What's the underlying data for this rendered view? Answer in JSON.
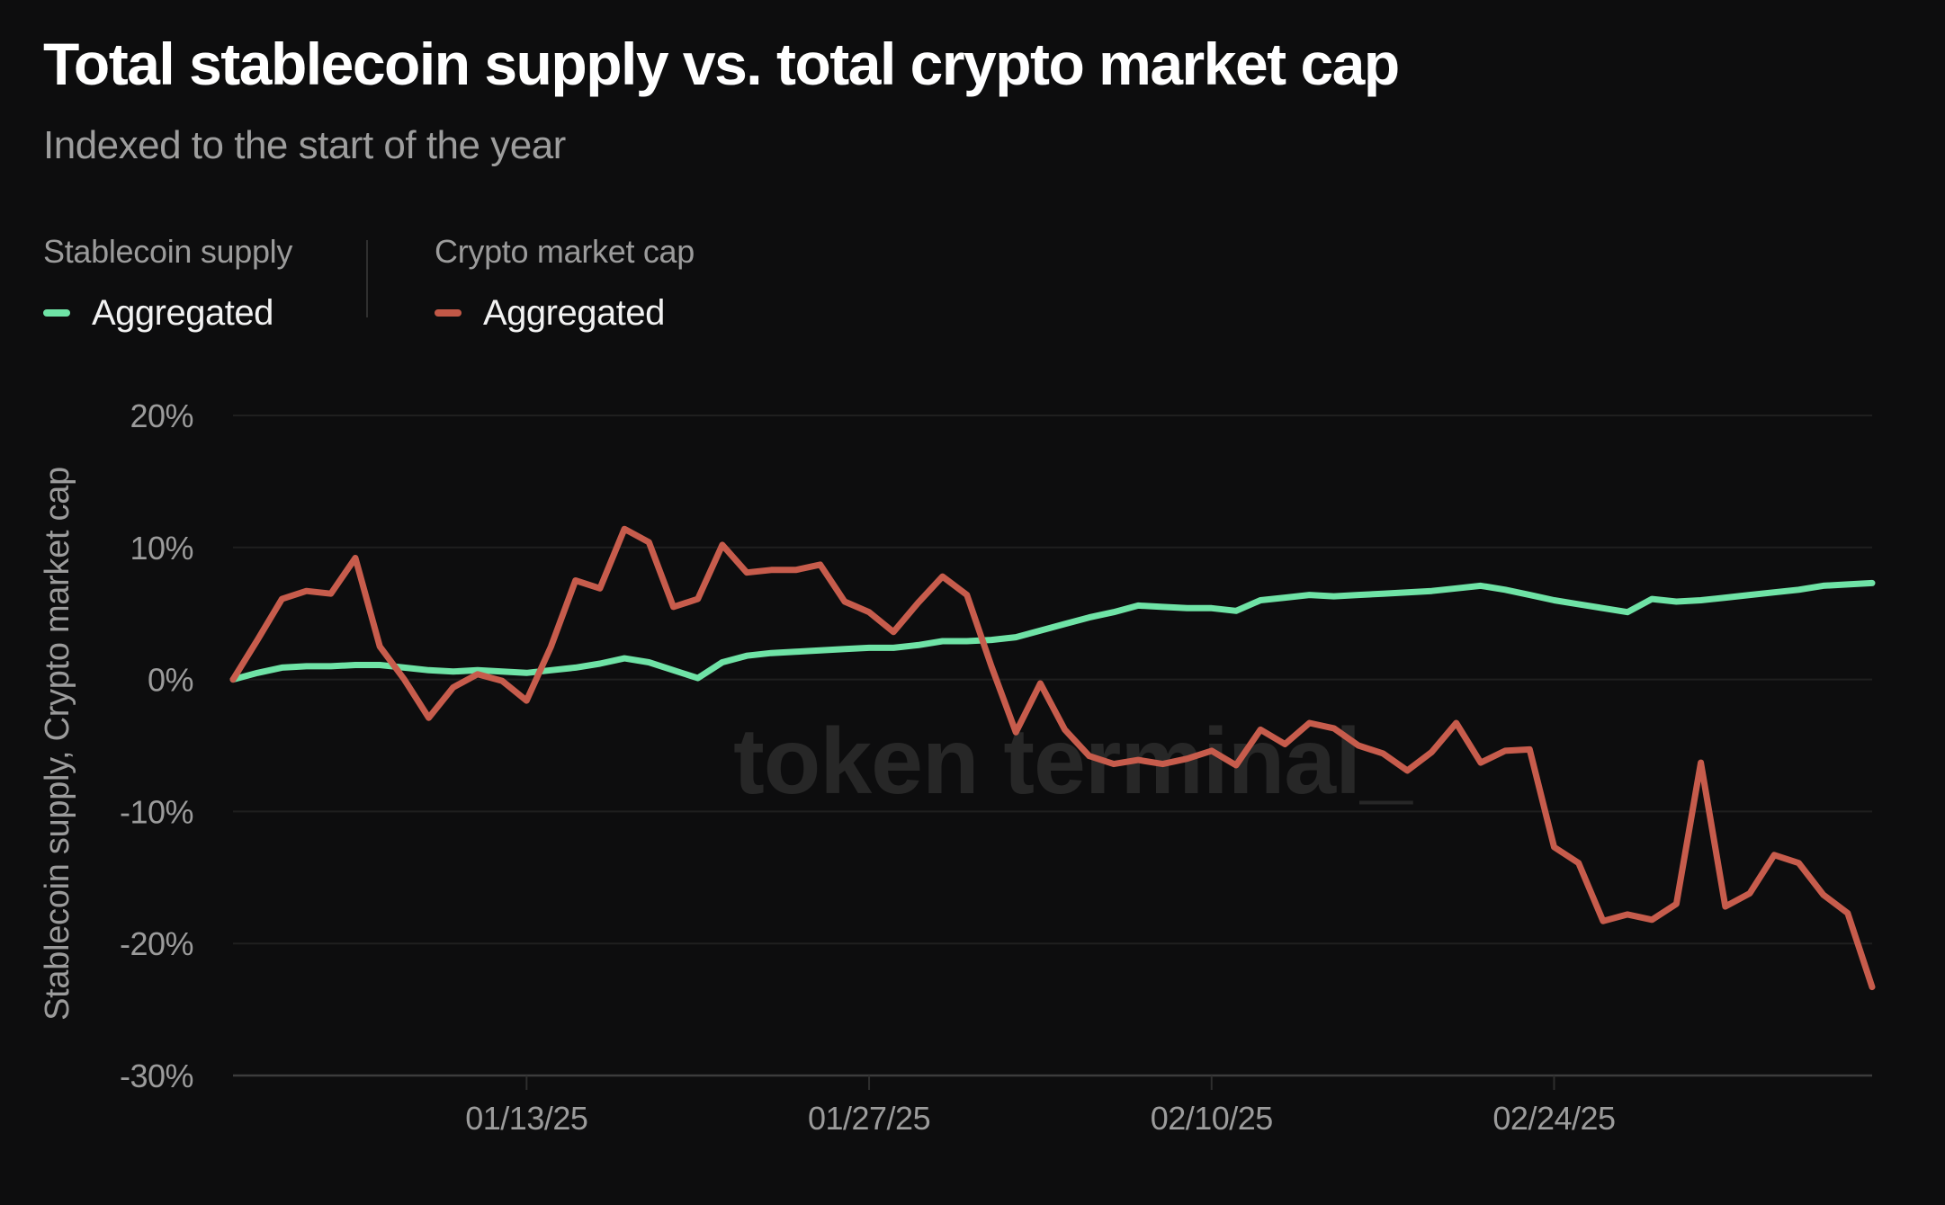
{
  "header": {
    "title": "Total stablecoin supply vs. total crypto market cap",
    "subtitle": "Indexed to the start of the year"
  },
  "legend": {
    "groups": [
      {
        "header": "Stablecoin supply",
        "series_label": "Aggregated",
        "color": "#6FE3A6"
      },
      {
        "header": "Crypto market cap",
        "series_label": "Aggregated",
        "color": "#C25847"
      }
    ]
  },
  "watermark": {
    "text": "token terminal_"
  },
  "y_axis": {
    "title": "Stablecoin supply, Crypto market cap"
  },
  "colors": {
    "background": "#0d0d0e",
    "gridline": "#1f1f1f",
    "axis_line": "#3c3c3c",
    "tick_mark": "#2e2e2e",
    "text_muted": "#9b9b9b",
    "text_primary": "#ffffff",
    "watermark": "#272727",
    "stablecoin_line": "#6FE3A6",
    "crypto_line": "#C75C4C"
  },
  "chart_data": {
    "type": "line",
    "title": "Total stablecoin supply vs. total crypto market cap",
    "subtitle": "Indexed to the start of the year",
    "ylabel": "Stablecoin supply, Crypto market cap",
    "ylim": [
      -30,
      20
    ],
    "grid": "horizontal",
    "legend_position": "top-left",
    "y_ticks": [
      {
        "value": 20,
        "label": "20%"
      },
      {
        "value": 10,
        "label": "10%"
      },
      {
        "value": 0,
        "label": "0%"
      },
      {
        "value": -10,
        "label": "-10%"
      },
      {
        "value": -20,
        "label": "-20%"
      },
      {
        "value": -30,
        "label": "-30%"
      }
    ],
    "x_ticks": [
      {
        "index": 12,
        "label": "01/13/25"
      },
      {
        "index": 26,
        "label": "01/27/25"
      },
      {
        "index": 40,
        "label": "02/10/25"
      },
      {
        "index": 54,
        "label": "02/24/25"
      }
    ],
    "x_dates": [
      "01/01/25",
      "01/02/25",
      "01/03/25",
      "01/04/25",
      "01/05/25",
      "01/06/25",
      "01/07/25",
      "01/08/25",
      "01/09/25",
      "01/10/25",
      "01/11/25",
      "01/12/25",
      "01/13/25",
      "01/14/25",
      "01/15/25",
      "01/16/25",
      "01/17/25",
      "01/18/25",
      "01/19/25",
      "01/20/25",
      "01/21/25",
      "01/22/25",
      "01/23/25",
      "01/24/25",
      "01/25/25",
      "01/26/25",
      "01/27/25",
      "01/28/25",
      "01/29/25",
      "01/30/25",
      "01/31/25",
      "02/01/25",
      "02/02/25",
      "02/03/25",
      "02/04/25",
      "02/05/25",
      "02/06/25",
      "02/07/25",
      "02/08/25",
      "02/09/25",
      "02/10/25",
      "02/11/25",
      "02/12/25",
      "02/13/25",
      "02/14/25",
      "02/15/25",
      "02/16/25",
      "02/17/25",
      "02/18/25",
      "02/19/25",
      "02/20/25",
      "02/21/25",
      "02/22/25",
      "02/23/25",
      "02/24/25",
      "02/25/25",
      "02/26/25",
      "02/27/25",
      "02/28/25",
      "03/01/25",
      "03/02/25",
      "03/03/25",
      "03/04/25",
      "03/05/25",
      "03/06/25",
      "03/07/25",
      "03/08/25",
      "03/09/25"
    ],
    "series": [
      {
        "name": "Stablecoin supply — Aggregated",
        "color": "#6FE3A6",
        "values": [
          0.0,
          0.5,
          0.9,
          1.0,
          1.0,
          1.1,
          1.1,
          0.9,
          0.7,
          0.6,
          0.7,
          0.6,
          0.5,
          0.7,
          0.9,
          1.2,
          1.6,
          1.3,
          0.7,
          0.1,
          1.3,
          1.8,
          2.0,
          2.1,
          2.2,
          2.3,
          2.4,
          2.4,
          2.6,
          2.9,
          2.9,
          3.0,
          3.2,
          3.7,
          4.2,
          4.7,
          5.1,
          5.6,
          5.5,
          5.4,
          5.4,
          5.2,
          6.0,
          6.2,
          6.4,
          6.3,
          6.4,
          6.5,
          6.6,
          6.7,
          6.9,
          7.1,
          6.8,
          6.4,
          6.0,
          5.7,
          5.4,
          5.1,
          6.1,
          5.9,
          6.0,
          6.2,
          6.4,
          6.6,
          6.8,
          7.1,
          7.2,
          7.3
        ]
      },
      {
        "name": "Crypto market cap — Aggregated",
        "color": "#C75C4C",
        "values": [
          0.0,
          3.0,
          6.1,
          6.7,
          6.5,
          9.2,
          2.5,
          0.0,
          -2.9,
          -0.6,
          0.4,
          -0.1,
          -1.6,
          2.5,
          7.5,
          6.9,
          11.4,
          10.4,
          5.5,
          6.1,
          10.2,
          8.1,
          8.3,
          8.3,
          8.7,
          5.9,
          5.1,
          3.6,
          5.8,
          7.8,
          6.4,
          1.0,
          -4.0,
          -0.3,
          -3.8,
          -5.8,
          -6.4,
          -6.1,
          -6.4,
          -6.0,
          -5.4,
          -6.5,
          -3.8,
          -4.9,
          -3.3,
          -3.7,
          -5.0,
          -5.6,
          -6.9,
          -5.5,
          -3.3,
          -6.3,
          -5.4,
          -5.3,
          -12.7,
          -13.9,
          -18.3,
          -17.8,
          -18.2,
          -17.0,
          -6.3,
          -17.2,
          -16.2,
          -13.3,
          -13.9,
          -16.3,
          -17.7,
          -23.3
        ]
      }
    ]
  }
}
